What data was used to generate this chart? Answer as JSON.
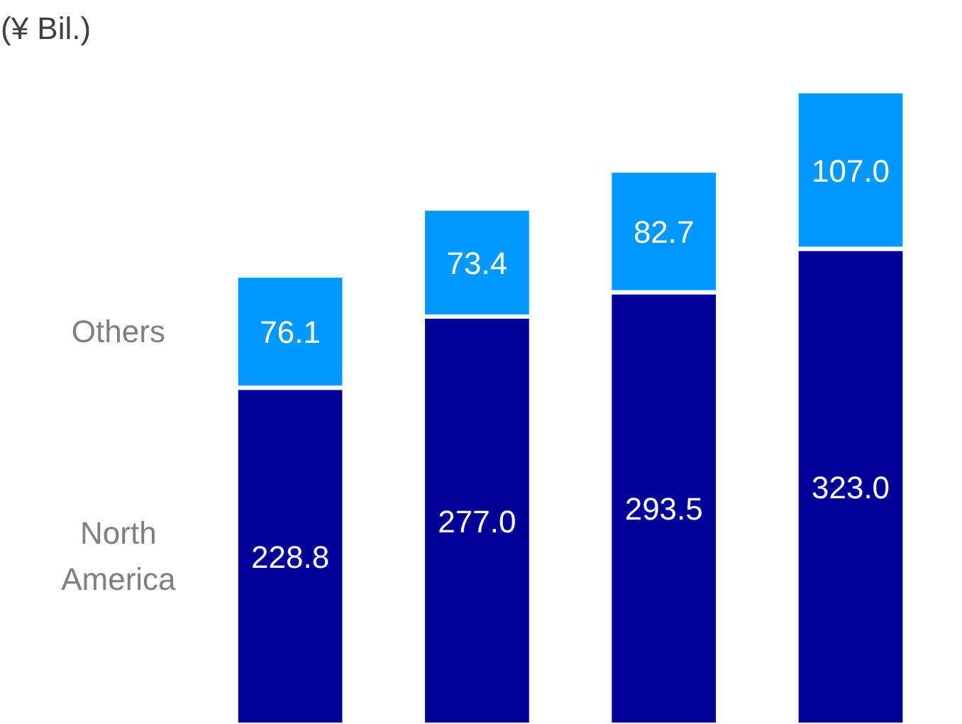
{
  "chart_data": {
    "type": "bar",
    "title": "(¥ Bil.)",
    "stacked": true,
    "grid": false,
    "categories": [
      null,
      null,
      null,
      null
    ],
    "series": [
      {
        "name": "North America",
        "color": "#000099",
        "values": [
          228.8,
          277.0,
          293.5,
          323.0
        ],
        "value_labels": [
          "228.8",
          "277.0",
          "293.5",
          "323.0"
        ]
      },
      {
        "name": "Others",
        "color": "#0099ff",
        "values": [
          76.1,
          73.4,
          82.7,
          107.0
        ],
        "value_labels": [
          "76.1",
          "73.4",
          "82.7",
          "107.0"
        ]
      }
    ]
  }
}
